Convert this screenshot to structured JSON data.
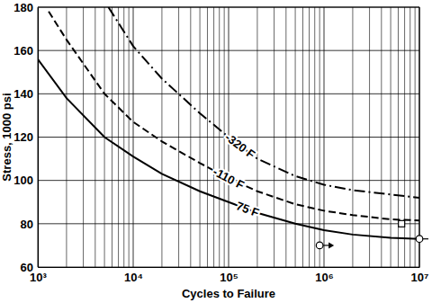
{
  "chart_data": {
    "type": "line",
    "x_label": "Cycles to Failure",
    "y_label": "Stress, 1000 psi",
    "log": "x",
    "grid": true,
    "xlim": [
      1000,
      10000000
    ],
    "ylim": [
      60,
      180
    ],
    "xticks": [
      {
        "value": 1000,
        "label": "10³"
      },
      {
        "value": 10000,
        "label": "10⁴"
      },
      {
        "value": 100000,
        "label": "10⁵"
      },
      {
        "value": 1000000,
        "label": "10⁶"
      },
      {
        "value": 10000000,
        "label": "10⁷"
      }
    ],
    "yticks": [
      60,
      80,
      100,
      120,
      140,
      160,
      180
    ],
    "series": [
      {
        "name": "-320 F",
        "type": "line",
        "color": "#000000",
        "line_style": "dashdot",
        "x": [
          5500,
          10000,
          20000,
          50000,
          100000,
          200000,
          500000,
          1000000,
          2000000,
          5000000,
          10000000
        ],
        "values": [
          180,
          162,
          147,
          131,
          120,
          110,
          102,
          98,
          95.5,
          93.5,
          92
        ]
      },
      {
        "name": "-110 F",
        "type": "line",
        "color": "#000000",
        "line_style": "dashed",
        "x": [
          1300,
          2000,
          5000,
          10000,
          20000,
          50000,
          100000,
          200000,
          500000,
          1000000,
          2000000,
          5000000,
          10000000
        ],
        "values": [
          178,
          165,
          140,
          127,
          118,
          108,
          101,
          95,
          89,
          86,
          84,
          82,
          81.5
        ]
      },
      {
        "name": "75 F",
        "type": "line",
        "color": "#000000",
        "line_style": "solid",
        "x": [
          1000,
          2000,
          5000,
          10000,
          20000,
          50000,
          100000,
          200000,
          500000,
          1000000,
          2000000,
          5000000,
          10000000
        ],
        "values": [
          156,
          138,
          120,
          111,
          103,
          95,
          90,
          85,
          80,
          77,
          75,
          73.5,
          73
        ]
      },
      {
        "type": "scatter",
        "marker": "circle-arrow",
        "color": "#000000",
        "x": [
          900000,
          10000000
        ],
        "values": [
          70,
          73
        ]
      },
      {
        "type": "scatter",
        "marker": "square",
        "color": "#000000",
        "x": [
          6500000
        ],
        "values": [
          80
        ]
      }
    ]
  }
}
